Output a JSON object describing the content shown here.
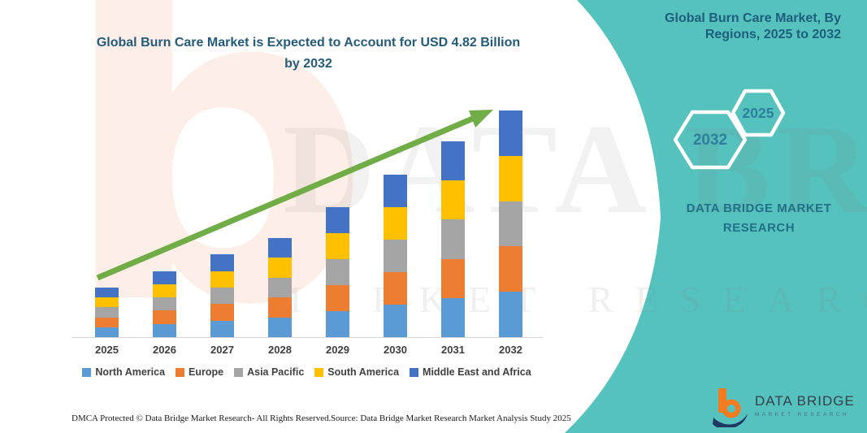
{
  "colors": {
    "teal_panel": "#56C2BD",
    "title_blue": "#235B7A",
    "panel_text_blue": "#1D5E7C",
    "hex_year_blue": "#2E7E9E",
    "arrow_green": "#70AD47",
    "axis_gray": "#D4D4D4",
    "label_gray": "#3F3F3F",
    "logo_orange": "#F47C20",
    "logo_navy": "#1F3864"
  },
  "header": {
    "chart_title": "Global Burn Care Market is Expected to Account for USD 4.82 Billion by 2032"
  },
  "panel": {
    "title": "Global Burn Care Market, By Regions, 2025 to 2032",
    "hex_large_year": "2032",
    "hex_small_year": "2025",
    "brand_caption": "DATA BRIDGE MARKET RESEARCH"
  },
  "logo": {
    "name": "DATA BRIDGE",
    "subtitle": "MARKET RESEARCH"
  },
  "watermark": {
    "letter_b": "b",
    "big_text": "DATA BRIDGE",
    "sub_text": "MARKET RESEARCH"
  },
  "footer": {
    "left": "DMCA Protected © Data Bridge Market Research-  All Rights Reserved.",
    "right": "Source: Data Bridge Market Research  Market Analysis Study 2025"
  },
  "chart_data": {
    "type": "bar",
    "stacked": true,
    "categories": [
      "2025",
      "2026",
      "2027",
      "2028",
      "2029",
      "2030",
      "2031",
      "2032"
    ],
    "series": [
      {
        "name": "North America",
        "color": "#5B9BD5",
        "values": [
          0.21,
          0.28,
          0.35,
          0.42,
          0.55,
          0.69,
          0.83,
          0.96
        ]
      },
      {
        "name": "Europe",
        "color": "#ED7D31",
        "values": [
          0.21,
          0.28,
          0.35,
          0.42,
          0.55,
          0.69,
          0.83,
          0.96
        ]
      },
      {
        "name": "Asia Pacific",
        "color": "#A5A5A5",
        "values": [
          0.21,
          0.28,
          0.35,
          0.42,
          0.55,
          0.69,
          0.83,
          0.96
        ]
      },
      {
        "name": "South America",
        "color": "#FFC000",
        "values": [
          0.21,
          0.28,
          0.35,
          0.42,
          0.55,
          0.69,
          0.83,
          0.96
        ]
      },
      {
        "name": "Middle East and Africa",
        "color": "#4472C4",
        "values": [
          0.21,
          0.28,
          0.35,
          0.42,
          0.55,
          0.69,
          0.83,
          0.96
        ]
      }
    ],
    "totals": [
      1.04,
      1.4,
      1.76,
      2.11,
      2.76,
      3.44,
      4.13,
      4.82
    ],
    "unit": "USD Billion",
    "ylim": [
      0,
      4.82
    ],
    "xlabel": "",
    "ylabel": "",
    "grid": false,
    "legend_position": "bottom"
  }
}
